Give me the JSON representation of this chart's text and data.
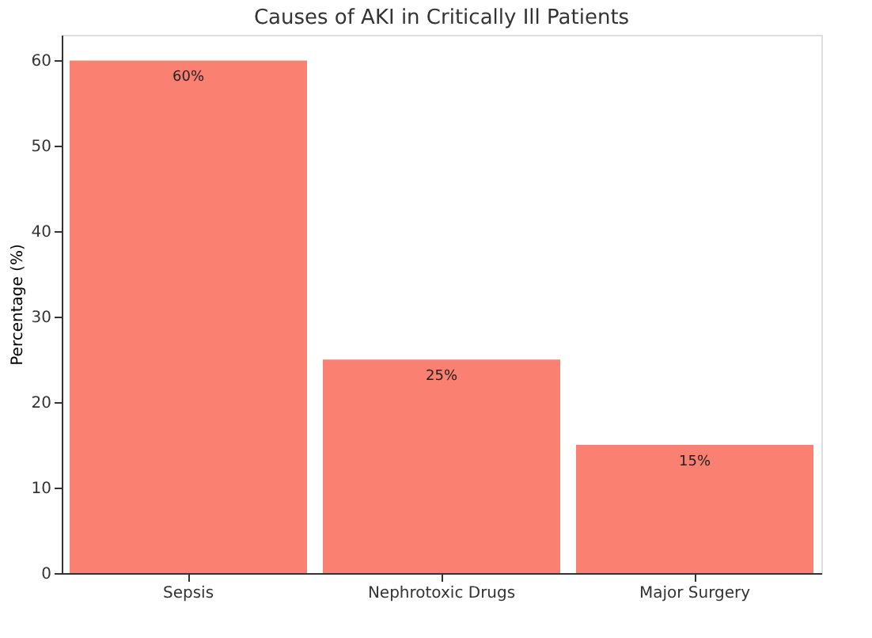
{
  "chart_data": {
    "type": "bar",
    "title": "Causes of AKI in Critically Ill Patients",
    "ylabel": "Percentage (%)",
    "categories": [
      "Sepsis",
      "Nephrotoxic Drugs",
      "Major Surgery"
    ],
    "values": [
      60,
      25,
      15
    ],
    "color": "#fa8072",
    "value_labels": [
      "60%",
      "25%",
      "15%"
    ],
    "ylim": [
      0,
      63
    ],
    "yticks": [
      0,
      10,
      20,
      30,
      40,
      50,
      60
    ],
    "grid": false
  }
}
